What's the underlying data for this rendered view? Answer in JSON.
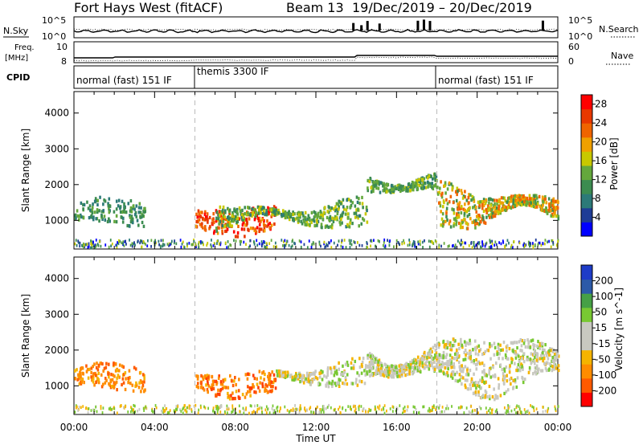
{
  "header": {
    "station": "Fort Hays West (fitACF)",
    "beam": "Beam 13",
    "date_range": "19/Dec/2019 – 20/Dec/2019"
  },
  "top_panels": {
    "nsky_label": "N.Sky",
    "nsky_ticks": [
      "10^5",
      "10^0"
    ],
    "nsearch_label": "N.Search",
    "right_ticks_top": [
      "10^5",
      "10^0"
    ],
    "freq_label": "Freq.",
    "freq_unit": "[MHz]",
    "freq_ticks": [
      "10",
      "8"
    ],
    "nave_label": "Nave",
    "nave_ticks": [
      "60",
      "0"
    ],
    "cpid_label": "CPID",
    "cpid_segments": [
      {
        "label": "normal (fast) 151 IF",
        "start": 0,
        "end": 6
      },
      {
        "label": "themis 3300 IF",
        "start": 6,
        "end": 18
      },
      {
        "label": "normal (fast) 151 IF",
        "start": 18,
        "end": 24
      }
    ]
  },
  "colors": {
    "power": [
      "#0000ff",
      "#1e3c96",
      "#2c7a78",
      "#3c8c50",
      "#64a83c",
      "#c8c800",
      "#f0a000",
      "#f06400",
      "#e83800",
      "#ff0000"
    ],
    "velocity": [
      "#ff0000",
      "#ff5a00",
      "#ff8c00",
      "#f5b400",
      "#c8c8c0",
      "#c8c8c0",
      "#78c832",
      "#46a046",
      "#2c5aa8",
      "#1e3cc8"
    ],
    "scatter_panel_bg": "#ffffff"
  },
  "chart_data": [
    {
      "type": "heatmap",
      "name": "power",
      "xlabel": "",
      "ylabel": "Slant Range [km]",
      "x_ticks": [
        "00:00",
        "04:00",
        "08:00",
        "12:00",
        "16:00",
        "20:00",
        "00:00"
      ],
      "y_ticks": [
        "1000",
        "2000",
        "3000",
        "4000"
      ],
      "ylim": [
        200,
        4600
      ],
      "xlim": [
        0,
        24
      ],
      "colorbar_label": "Power [dB]",
      "colorbar_ticks": [
        "4",
        "8",
        "12",
        "16",
        "20",
        "24",
        "28"
      ],
      "colorbar_range": [
        0,
        30
      ],
      "dashed_lines_hours": [
        6,
        18
      ],
      "echo_regions": [
        {
          "x": [
            0.0,
            3.5
          ],
          "y": [
            850,
            1600
          ],
          "values": "6-14"
        },
        {
          "x": [
            6.0,
            10.0
          ],
          "y": [
            600,
            1400
          ],
          "values": "20-30"
        },
        {
          "x": [
            7.0,
            14.5
          ],
          "y": [
            700,
            1600
          ],
          "values": "8-18"
        },
        {
          "x": [
            14.5,
            18.0
          ],
          "y": [
            1500,
            2500
          ],
          "values": "8-16"
        },
        {
          "x": [
            18.0,
            24.0
          ],
          "y": [
            700,
            2100
          ],
          "values": "10-24"
        }
      ]
    },
    {
      "type": "heatmap",
      "name": "velocity",
      "xlabel": "Time UT",
      "ylabel": "Slant Range [km]",
      "x_ticks": [
        "00:00",
        "04:00",
        "08:00",
        "12:00",
        "16:00",
        "20:00",
        "00:00"
      ],
      "y_ticks": [
        "1000",
        "2000",
        "3000",
        "4000"
      ],
      "ylim": [
        200,
        4600
      ],
      "xlim": [
        0,
        24
      ],
      "colorbar_label": "Velocity [m s^-1]",
      "colorbar_ticks": [
        "200",
        "100",
        "50",
        "15",
        "-15",
        "-50",
        "-100",
        "-200"
      ],
      "colorbar_range": [
        -250,
        250
      ],
      "dashed_lines_hours": [
        6,
        18
      ],
      "echo_regions": [
        {
          "x": [
            0.0,
            3.5
          ],
          "y": [
            850,
            1600
          ],
          "values": "-100 to -50"
        },
        {
          "x": [
            6.0,
            10.0
          ],
          "y": [
            700,
            1400
          ],
          "values": "-100 to -50"
        },
        {
          "x": [
            10.0,
            14.5
          ],
          "y": [
            900,
            1700
          ],
          "values": "-15 to 50"
        },
        {
          "x": [
            14.5,
            24.0
          ],
          "y": [
            800,
            2400
          ],
          "values": "-15 to 15"
        }
      ]
    }
  ]
}
